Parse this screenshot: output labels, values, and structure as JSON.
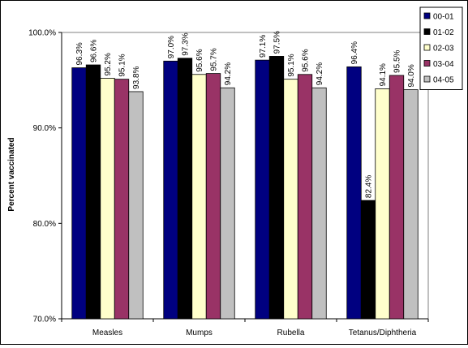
{
  "chart_data": {
    "type": "bar",
    "title": "",
    "xlabel": "",
    "ylabel": "Percent vaccinated",
    "categories": [
      "Measles",
      "Mumps",
      "Rubella",
      "Tetanus/Diphtheria"
    ],
    "ylim": [
      70,
      100
    ],
    "yticks": [
      70,
      80,
      90,
      100
    ],
    "ytick_labels": [
      "70.0%",
      "80.0%",
      "90.0%",
      "100.0%"
    ],
    "grid": false,
    "legend_position": "top-right",
    "series": [
      {
        "name": "00-01",
        "color": "#000080",
        "values": [
          96.3,
          97.0,
          97.1,
          96.4
        ],
        "labels": [
          "96.3%",
          "97.0%",
          "97.1%",
          "96.4%"
        ]
      },
      {
        "name": "01-02",
        "color": "#000000",
        "values": [
          96.6,
          97.3,
          97.5,
          82.4
        ],
        "labels": [
          "96.6%",
          "97.3%",
          "97.5%",
          "82.4%"
        ]
      },
      {
        "name": "02-03",
        "color": "#FFFFCC",
        "values": [
          95.2,
          95.6,
          95.1,
          94.1
        ],
        "labels": [
          "95.2%",
          "95.6%",
          "95.1%",
          "94.1%"
        ]
      },
      {
        "name": "03-04",
        "color": "#993366",
        "values": [
          95.1,
          95.7,
          95.6,
          95.5
        ],
        "labels": [
          "95.1%",
          "95.7%",
          "95.6%",
          "95.5%"
        ]
      },
      {
        "name": "04-05",
        "color": "#C0C0C0",
        "values": [
          93.8,
          94.2,
          94.2,
          94.0
        ],
        "labels": [
          "93.8%",
          "94.2%",
          "94.2%",
          "94.0%"
        ]
      }
    ]
  }
}
